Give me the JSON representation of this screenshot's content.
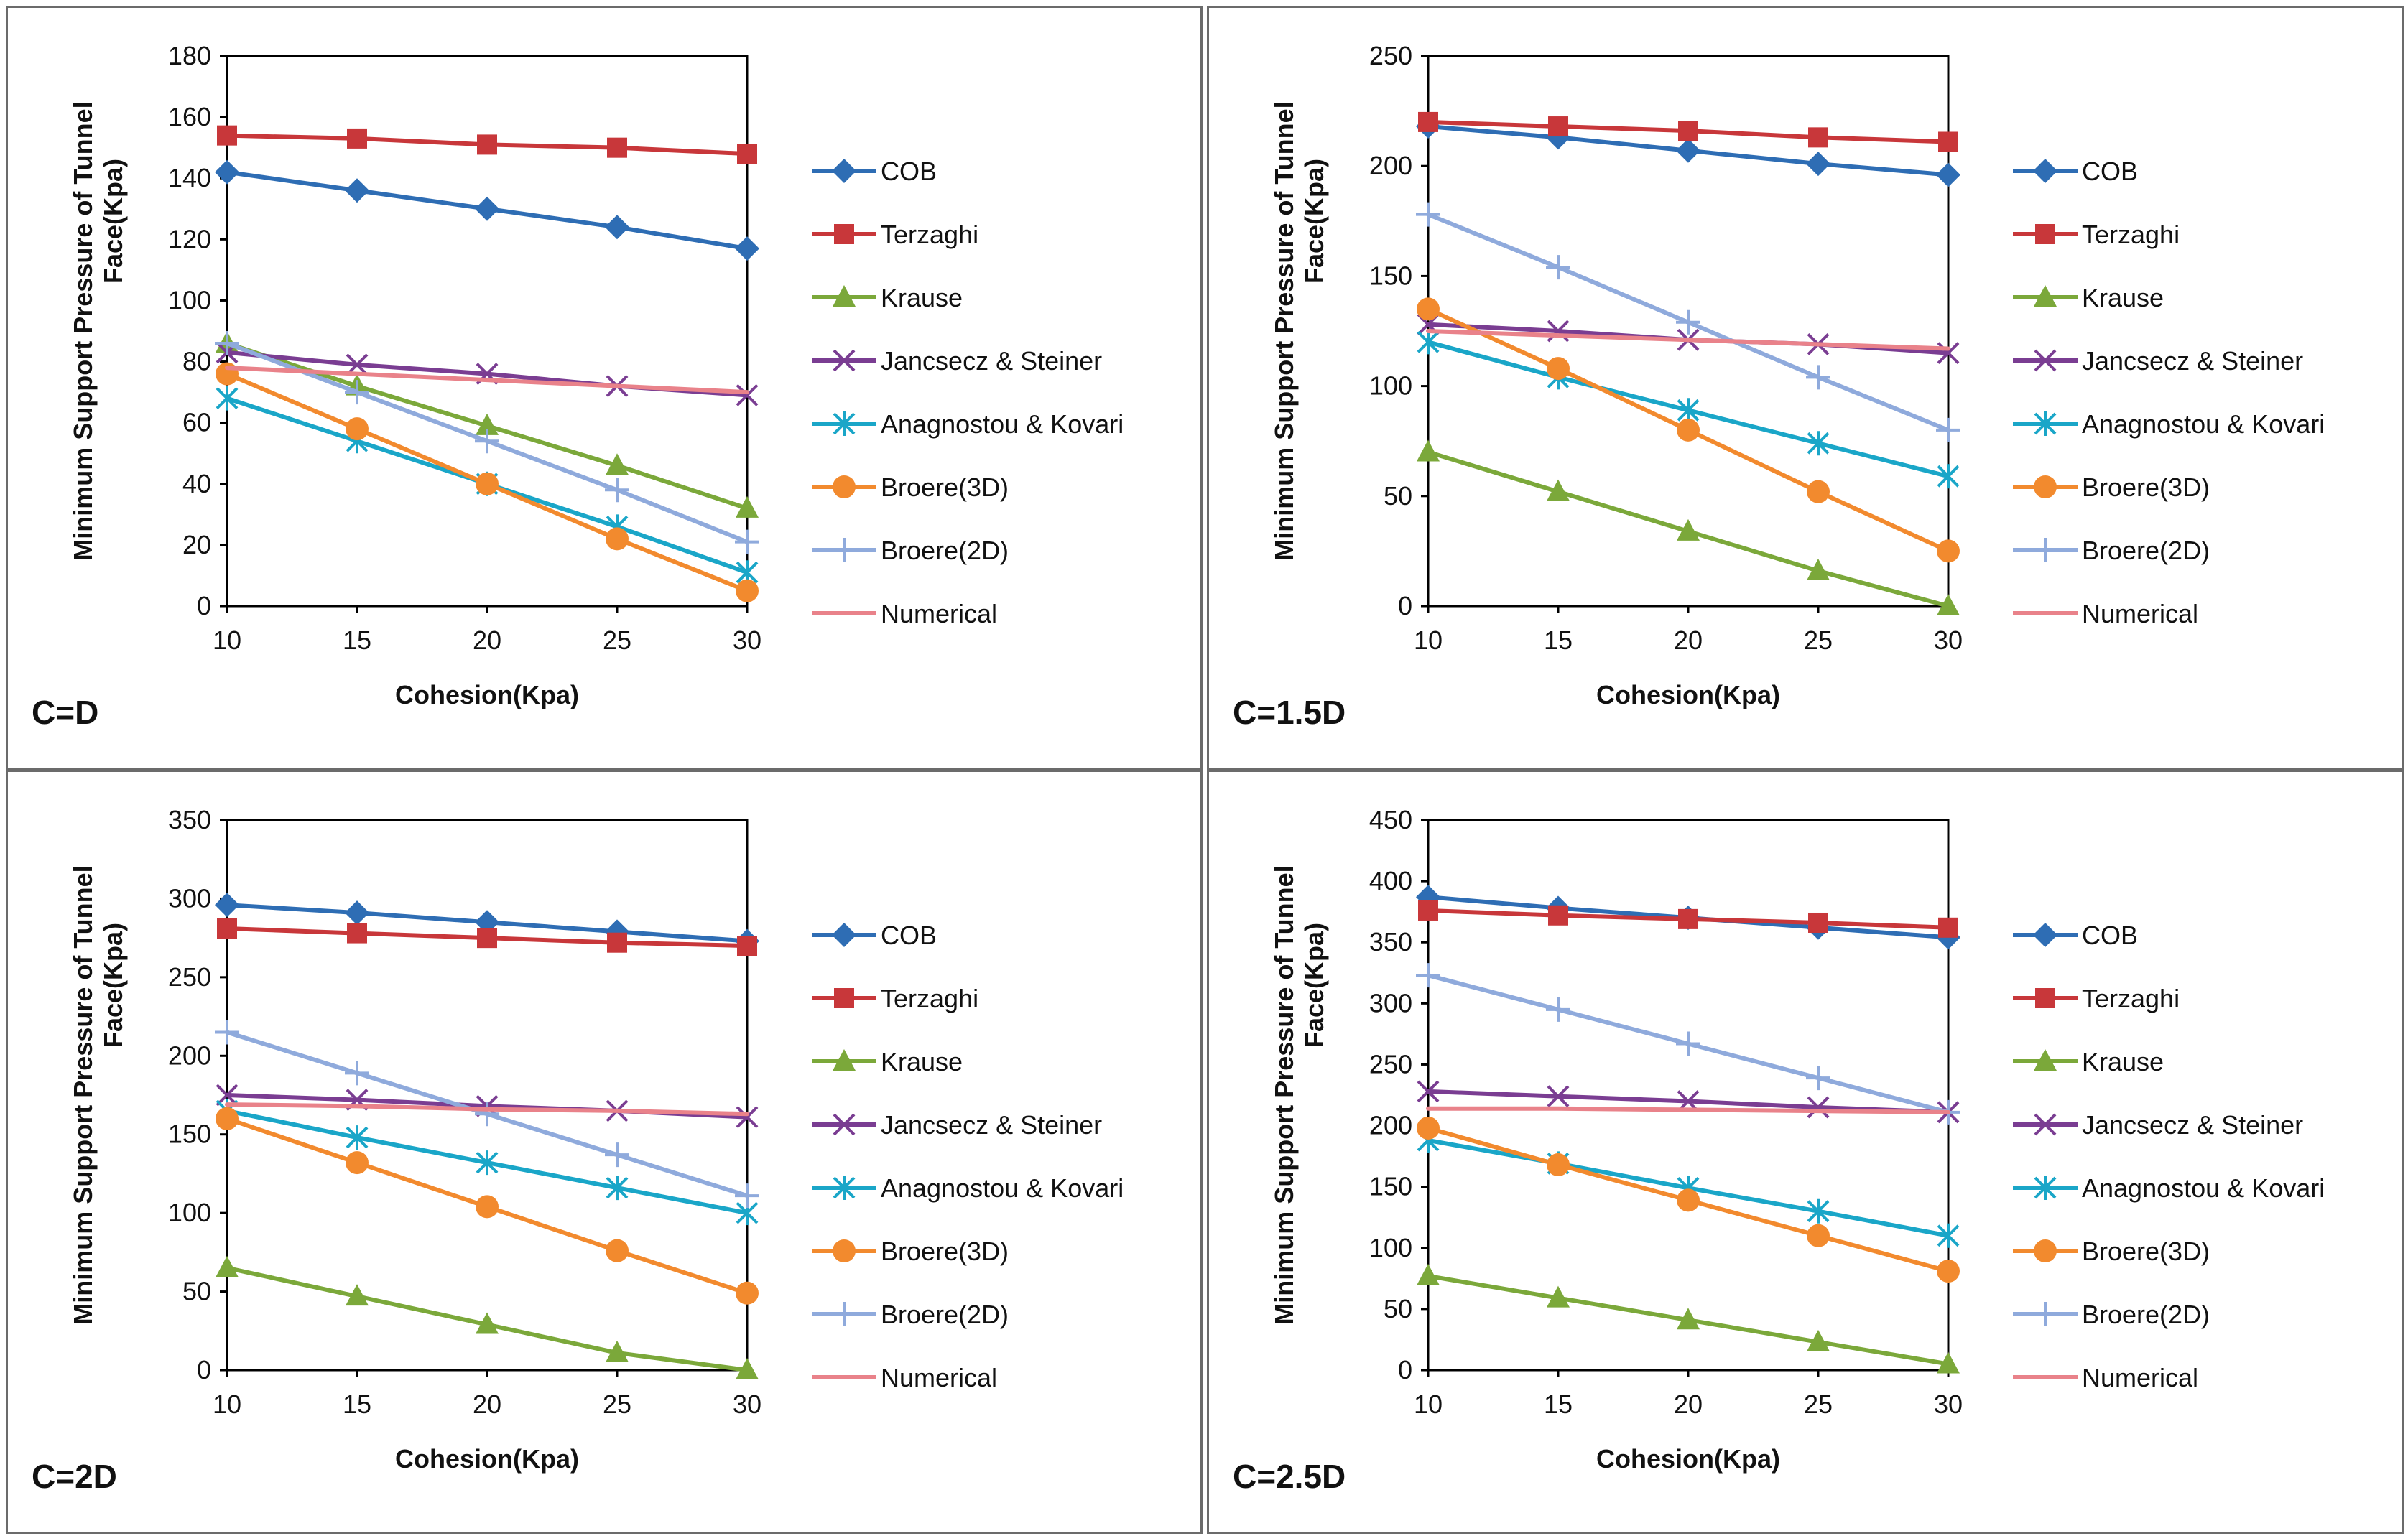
{
  "chart_data": [
    {
      "type": "line",
      "panel_label": "C=D",
      "xlabel": "Cohesion(Kpa)",
      "ylabel_line1": "Minimum Support Pressure of Tunnel",
      "ylabel_line2": "Face(Kpa)",
      "x": [
        10,
        15,
        20,
        25,
        30
      ],
      "ylim": [
        0,
        180
      ],
      "yticks": [
        0,
        20,
        40,
        60,
        80,
        100,
        120,
        140,
        160,
        180
      ],
      "legend_position": "right",
      "series": [
        {
          "name": "COB",
          "color": "#2E6DB4",
          "marker": "diamond",
          "values": [
            142,
            136,
            130,
            124,
            117
          ]
        },
        {
          "name": "Terzaghi",
          "color": "#C8373A",
          "marker": "square",
          "values": [
            154,
            153,
            151,
            150,
            148
          ]
        },
        {
          "name": "Krause",
          "color": "#7BA83A",
          "marker": "triangle",
          "values": [
            86,
            72,
            59,
            46,
            32
          ]
        },
        {
          "name": "Jancsecz & Steiner",
          "color": "#7A3D92",
          "marker": "x",
          "values": [
            83,
            79,
            76,
            72,
            69
          ]
        },
        {
          "name": "Anagnostou & Kovari",
          "color": "#1AA6C8",
          "marker": "asterisk",
          "values": [
            68,
            54,
            40,
            26,
            11
          ]
        },
        {
          "name": "Broere(3D)",
          "color": "#F28A2E",
          "marker": "circle",
          "values": [
            76,
            58,
            40,
            22,
            5
          ]
        },
        {
          "name": "Broere(2D)",
          "color": "#8FAADC",
          "marker": "plus",
          "values": [
            86,
            70,
            54,
            38,
            21
          ]
        },
        {
          "name": "Numerical",
          "color": "#E9828A",
          "marker": "none",
          "values": [
            78,
            76,
            74,
            72,
            70
          ]
        }
      ]
    },
    {
      "type": "line",
      "panel_label": "C=1.5D",
      "xlabel": "Cohesion(Kpa)",
      "ylabel_line1": "Minimum Support Pressure of Tunnel",
      "ylabel_line2": "Face(Kpa)",
      "x": [
        10,
        15,
        20,
        25,
        30
      ],
      "ylim": [
        0,
        250
      ],
      "yticks": [
        0,
        50,
        100,
        150,
        200,
        250
      ],
      "legend_position": "right",
      "series": [
        {
          "name": "COB",
          "color": "#2E6DB4",
          "marker": "diamond",
          "values": [
            218,
            213,
            207,
            201,
            196
          ]
        },
        {
          "name": "Terzaghi",
          "color": "#C8373A",
          "marker": "square",
          "values": [
            220,
            218,
            216,
            213,
            211
          ]
        },
        {
          "name": "Krause",
          "color": "#7BA83A",
          "marker": "triangle",
          "values": [
            70,
            52,
            34,
            16,
            0
          ]
        },
        {
          "name": "Jancsecz & Steiner",
          "color": "#7A3D92",
          "marker": "x",
          "values": [
            128,
            125,
            121,
            119,
            115
          ]
        },
        {
          "name": "Anagnostou & Kovari",
          "color": "#1AA6C8",
          "marker": "asterisk",
          "values": [
            120,
            104,
            89,
            74,
            59
          ]
        },
        {
          "name": "Broere(3D)",
          "color": "#F28A2E",
          "marker": "circle",
          "values": [
            135,
            108,
            80,
            52,
            25
          ]
        },
        {
          "name": "Broere(2D)",
          "color": "#8FAADC",
          "marker": "plus",
          "values": [
            178,
            154,
            129,
            104,
            80
          ]
        },
        {
          "name": "Numerical",
          "color": "#E9828A",
          "marker": "none",
          "values": [
            125,
            123,
            121,
            119,
            117
          ]
        }
      ]
    },
    {
      "type": "line",
      "panel_label": "C=2D",
      "xlabel": "Cohesion(Kpa)",
      "ylabel_line1": "Minimum Support Pressure of Tunnel",
      "ylabel_line2": "Face(Kpa)",
      "x": [
        10,
        15,
        20,
        25,
        30
      ],
      "ylim": [
        0,
        350
      ],
      "yticks": [
        0,
        50,
        100,
        150,
        200,
        250,
        300,
        350
      ],
      "legend_position": "right",
      "series": [
        {
          "name": "COB",
          "color": "#2E6DB4",
          "marker": "diamond",
          "values": [
            296,
            291,
            285,
            279,
            273
          ]
        },
        {
          "name": "Terzaghi",
          "color": "#C8373A",
          "marker": "square",
          "values": [
            281,
            278,
            275,
            272,
            270
          ]
        },
        {
          "name": "Krause",
          "color": "#7BA83A",
          "marker": "triangle",
          "values": [
            65,
            47,
            29,
            11,
            0
          ]
        },
        {
          "name": "Jancsecz & Steiner",
          "color": "#7A3D92",
          "marker": "x",
          "values": [
            175,
            172,
            168,
            165,
            161
          ]
        },
        {
          "name": "Anagnostou & Kovari",
          "color": "#1AA6C8",
          "marker": "asterisk",
          "values": [
            165,
            148,
            132,
            116,
            100
          ]
        },
        {
          "name": "Broere(3D)",
          "color": "#F28A2E",
          "marker": "circle",
          "values": [
            160,
            132,
            104,
            76,
            49
          ]
        },
        {
          "name": "Broere(2D)",
          "color": "#8FAADC",
          "marker": "plus",
          "values": [
            215,
            189,
            163,
            137,
            111
          ]
        },
        {
          "name": "Numerical",
          "color": "#E9828A",
          "marker": "none",
          "values": [
            169,
            168,
            166,
            165,
            163
          ]
        }
      ]
    },
    {
      "type": "line",
      "panel_label": "C=2.5D",
      "xlabel": "Cohesion(Kpa)",
      "ylabel_line1": "Minimum Support Pressure of Tunnel",
      "ylabel_line2": "Face(Kpa)",
      "x": [
        10,
        15,
        20,
        25,
        30
      ],
      "ylim": [
        0,
        450
      ],
      "yticks": [
        0,
        50,
        100,
        150,
        200,
        250,
        300,
        350,
        400,
        450
      ],
      "legend_position": "right",
      "series": [
        {
          "name": "COB",
          "color": "#2E6DB4",
          "marker": "diamond",
          "values": [
            387,
            378,
            370,
            362,
            354
          ]
        },
        {
          "name": "Terzaghi",
          "color": "#C8373A",
          "marker": "square",
          "values": [
            376,
            372,
            369,
            366,
            362
          ]
        },
        {
          "name": "Krause",
          "color": "#7BA83A",
          "marker": "triangle",
          "values": [
            77,
            59,
            41,
            23,
            5
          ]
        },
        {
          "name": "Jancsecz & Steiner",
          "color": "#7A3D92",
          "marker": "x",
          "values": [
            228,
            224,
            220,
            215,
            211
          ]
        },
        {
          "name": "Anagnostou & Kovari",
          "color": "#1AA6C8",
          "marker": "asterisk",
          "values": [
            188,
            169,
            149,
            130,
            110
          ]
        },
        {
          "name": "Broere(3D)",
          "color": "#F28A2E",
          "marker": "circle",
          "values": [
            198,
            168,
            139,
            110,
            81
          ]
        },
        {
          "name": "Broere(2D)",
          "color": "#8FAADC",
          "marker": "plus",
          "values": [
            323,
            295,
            267,
            239,
            211
          ]
        },
        {
          "name": "Numerical",
          "color": "#E9828A",
          "marker": "none",
          "values": [
            214,
            214,
            213,
            212,
            211
          ]
        }
      ]
    }
  ]
}
